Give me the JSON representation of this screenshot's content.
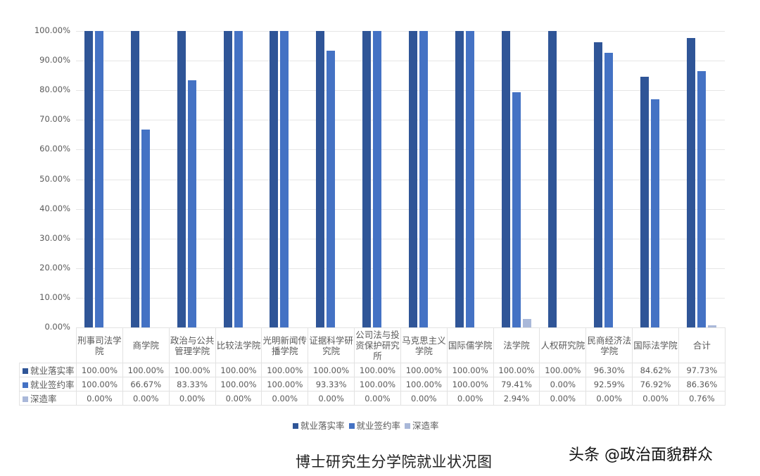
{
  "chart_data": {
    "type": "bar",
    "title": "博士研究生分学院就业状况图",
    "xlabel": "",
    "ylabel": "",
    "ylim": [
      0,
      100
    ],
    "yticks": [
      "0.00%",
      "10.00%",
      "20.00%",
      "30.00%",
      "40.00%",
      "50.00%",
      "60.00%",
      "70.00%",
      "80.00%",
      "90.00%",
      "100.00%"
    ],
    "grid": true,
    "legend_position": "bottom",
    "categories": [
      "刑事司法学院",
      "商学院",
      "政治与公共管理学院",
      "比较法学院",
      "光明新闻传播学院",
      "证据科学研究院",
      "公司法与投资保护研究所",
      "马克思主义学院",
      "国际儒学院",
      "法学院",
      "人权研究院",
      "民商经济法学院",
      "国际法学院",
      "合计"
    ],
    "category_display": [
      "刑事司法学\n院",
      "商学院",
      "政治与公共\n管理学院",
      "比较法学院",
      "光明新闻传\n播学院",
      "证据科学研\n究院",
      "公司法与投\n资保护研究\n所",
      "马克思主义\n学院",
      "国际儒学院",
      "法学院",
      "人权研究院",
      "民商经济法\n学院",
      "国际法学院",
      "合计"
    ],
    "series": [
      {
        "name": "就业落实率",
        "color": "#2f5597",
        "values": [
          100.0,
          100.0,
          100.0,
          100.0,
          100.0,
          100.0,
          100.0,
          100.0,
          100.0,
          100.0,
          100.0,
          96.3,
          84.62,
          97.73
        ],
        "labels": [
          "100.00%",
          "100.00%",
          "100.00%",
          "100.00%",
          "100.00%",
          "100.00%",
          "100.00%",
          "100.00%",
          "100.00%",
          "100.00%",
          "100.00%",
          "96.30%",
          "84.62%",
          "97.73%"
        ]
      },
      {
        "name": "就业签约率",
        "color": "#4472c4",
        "values": [
          100.0,
          66.67,
          83.33,
          100.0,
          100.0,
          93.33,
          100.0,
          100.0,
          100.0,
          79.41,
          0.0,
          92.59,
          76.92,
          86.36
        ],
        "labels": [
          "100.00%",
          "66.67%",
          "83.33%",
          "100.00%",
          "100.00%",
          "93.33%",
          "100.00%",
          "100.00%",
          "100.00%",
          "79.41%",
          "0.00%",
          "92.59%",
          "76.92%",
          "86.36%"
        ]
      },
      {
        "name": "深造率",
        "color": "#a9b8d9",
        "values": [
          0.0,
          0.0,
          0.0,
          0.0,
          0.0,
          0.0,
          0.0,
          0.0,
          0.0,
          2.94,
          0.0,
          0.0,
          0.0,
          0.76
        ],
        "labels": [
          "0.00%",
          "0.00%",
          "0.00%",
          "0.00%",
          "0.00%",
          "0.00%",
          "0.00%",
          "0.00%",
          "0.00%",
          "2.94%",
          "0.00%",
          "0.00%",
          "0.00%",
          "0.76%"
        ]
      }
    ],
    "data_table": true
  },
  "watermark": "头条 @政治面貌群众"
}
